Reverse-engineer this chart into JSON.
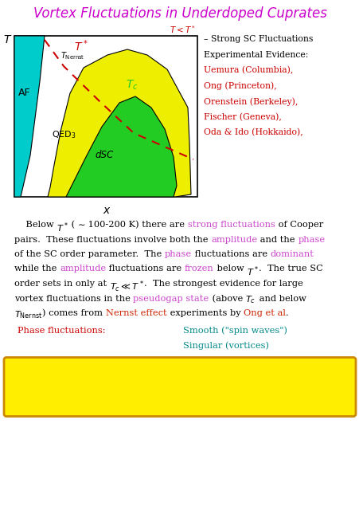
{
  "title": "Vortex Fluctuations in Underdoped Cuprates",
  "title_color": "#CC00CC",
  "bg_color": "#FFFFFF",
  "diagram": {
    "af_color": "#00CCCC",
    "qed_color": "#EEEE00",
    "dsc_color": "#22CC22",
    "dashed_color": "#CC0000"
  },
  "right_lines": [
    [
      "– Strong SC Fluctuations",
      "#000000"
    ],
    [
      "Experimental Evidence:",
      "#000000"
    ],
    [
      "Uemura (Columbia),",
      "#CC0000"
    ],
    [
      "Ong (Princeton),",
      "#CC0000"
    ],
    [
      "Orenstein (Berkeley),",
      "#CC0000"
    ],
    [
      "Fischer (Geneva),",
      "#CC0000"
    ],
    [
      "Oda & Ido (Hokkaido),",
      "#CC0000"
    ]
  ],
  "magenta": "#CC44CC",
  "orange_red": "#CC2200",
  "teal": "#008888",
  "red": "#CC0000",
  "black": "#000000",
  "bottom_box_bg": "#FFEE00",
  "bottom_box_border": "#CC8800"
}
